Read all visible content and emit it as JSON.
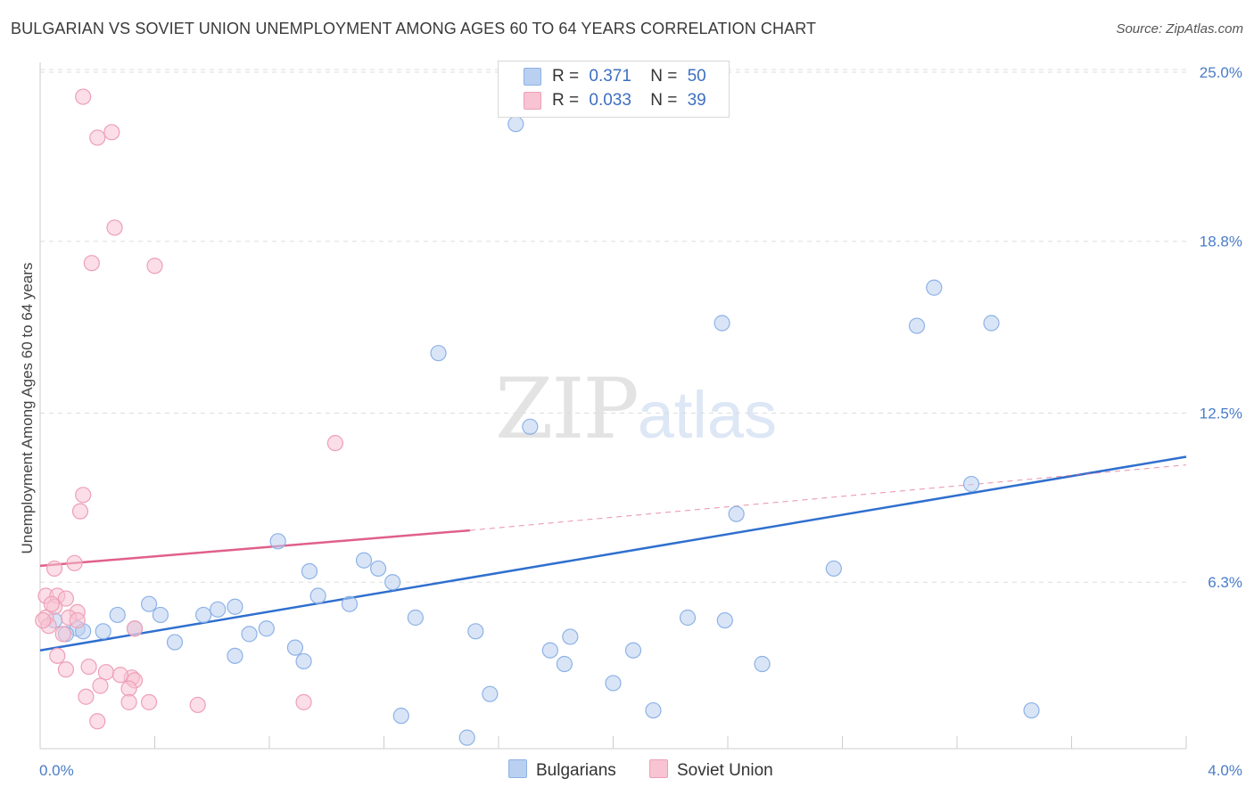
{
  "title": "BULGARIAN VS SOVIET UNION UNEMPLOYMENT AMONG AGES 60 TO 64 YEARS CORRELATION CHART",
  "source": "Source: ZipAtlas.com",
  "watermark": {
    "zip": "ZIP",
    "atlas": "atlas"
  },
  "legend": {
    "rows": [
      {
        "r_label": "R =",
        "r_value": "0.371",
        "n_label": "N =",
        "n_value": "50"
      },
      {
        "r_label": "R =",
        "r_value": "0.033",
        "n_label": "N =",
        "n_value": "39"
      }
    ]
  },
  "bottom_legend": [
    "Bulgarians",
    "Soviet Union"
  ],
  "colors": {
    "blue_fill": "#b9d0f0",
    "blue_stroke": "#8db2e6",
    "blue_line": "#2f6fce",
    "pink_fill": "#f8c3d3",
    "pink_stroke": "#ee9fb7",
    "pink_line": "#e0608a",
    "tick_label": "#4a7cc7"
  },
  "chart_data": {
    "type": "scatter",
    "title": "BULGARIAN VS SOVIET UNION UNEMPLOYMENT AMONG AGES 60 TO 64 YEARS CORRELATION CHART",
    "xlabel": "",
    "ylabel": "Unemployment Among Ages 60 to 64 years",
    "xlim": [
      0,
      4.0
    ],
    "ylim": [
      0,
      26
    ],
    "x_ticks": [
      {
        "value": 0,
        "label": "0.0%"
      },
      {
        "value": 4.0,
        "label": "4.0%"
      }
    ],
    "y_ticks": [
      {
        "value": 6.3,
        "label": "6.3%"
      },
      {
        "value": 12.5,
        "label": "12.5%"
      },
      {
        "value": 18.8,
        "label": "18.8%"
      },
      {
        "value": 25.0,
        "label": "25.0%"
      }
    ],
    "series": [
      {
        "name": "Bulgarians",
        "points": [
          [
            1.66,
            23.1
          ],
          [
            3.12,
            17.1
          ],
          [
            2.38,
            15.8
          ],
          [
            3.06,
            15.7
          ],
          [
            3.32,
            15.8
          ],
          [
            1.39,
            14.7
          ],
          [
            1.71,
            12.0
          ],
          [
            3.25,
            9.9
          ],
          [
            2.43,
            8.8
          ],
          [
            0.83,
            7.8
          ],
          [
            0.94,
            6.7
          ],
          [
            1.13,
            7.1
          ],
          [
            1.18,
            6.8
          ],
          [
            1.23,
            6.3
          ],
          [
            2.77,
            6.8
          ],
          [
            0.97,
            5.8
          ],
          [
            1.08,
            5.5
          ],
          [
            0.38,
            5.5
          ],
          [
            0.62,
            5.3
          ],
          [
            0.68,
            5.4
          ],
          [
            0.27,
            5.1
          ],
          [
            0.42,
            5.1
          ],
          [
            0.57,
            5.1
          ],
          [
            0.13,
            4.6
          ],
          [
            0.15,
            4.5
          ],
          [
            0.22,
            4.5
          ],
          [
            0.33,
            4.6
          ],
          [
            0.47,
            4.1
          ],
          [
            0.73,
            4.4
          ],
          [
            0.79,
            4.6
          ],
          [
            1.31,
            5.0
          ],
          [
            1.52,
            4.5
          ],
          [
            1.85,
            4.3
          ],
          [
            2.26,
            5.0
          ],
          [
            2.39,
            4.9
          ],
          [
            0.68,
            3.6
          ],
          [
            0.89,
            3.9
          ],
          [
            0.92,
            3.4
          ],
          [
            1.78,
            3.8
          ],
          [
            1.83,
            3.3
          ],
          [
            2.07,
            3.8
          ],
          [
            2.52,
            3.3
          ],
          [
            2.0,
            2.6
          ],
          [
            1.57,
            2.2
          ],
          [
            1.26,
            1.4
          ],
          [
            2.14,
            1.6
          ],
          [
            3.46,
            1.6
          ],
          [
            1.49,
            0.6
          ],
          [
            0.05,
            4.9
          ],
          [
            0.09,
            4.4
          ]
        ]
      },
      {
        "name": "Soviet Union",
        "points": [
          [
            0.15,
            24.1
          ],
          [
            0.2,
            22.6
          ],
          [
            0.25,
            22.8
          ],
          [
            0.26,
            19.3
          ],
          [
            0.18,
            18.0
          ],
          [
            0.4,
            17.9
          ],
          [
            1.03,
            11.4
          ],
          [
            0.15,
            9.5
          ],
          [
            0.14,
            8.9
          ],
          [
            0.12,
            7.0
          ],
          [
            0.05,
            6.8
          ],
          [
            0.02,
            5.8
          ],
          [
            0.06,
            5.8
          ],
          [
            0.09,
            5.7
          ],
          [
            0.05,
            5.4
          ],
          [
            0.13,
            5.2
          ],
          [
            0.1,
            5.0
          ],
          [
            0.13,
            4.9
          ],
          [
            0.02,
            5.0
          ],
          [
            0.03,
            4.7
          ],
          [
            0.08,
            4.4
          ],
          [
            0.33,
            4.6
          ],
          [
            0.06,
            3.6
          ],
          [
            0.09,
            3.1
          ],
          [
            0.17,
            3.2
          ],
          [
            0.23,
            3.0
          ],
          [
            0.32,
            2.8
          ],
          [
            0.28,
            2.9
          ],
          [
            0.33,
            2.7
          ],
          [
            0.21,
            2.5
          ],
          [
            0.31,
            2.4
          ],
          [
            0.16,
            2.1
          ],
          [
            0.31,
            1.9
          ],
          [
            0.38,
            1.9
          ],
          [
            0.55,
            1.8
          ],
          [
            0.92,
            1.9
          ],
          [
            0.2,
            1.2
          ],
          [
            0.01,
            4.9
          ],
          [
            0.04,
            5.5
          ]
        ]
      }
    ],
    "trend_lines": [
      {
        "series": "Bulgarians",
        "x": [
          0,
          4.0
        ],
        "y": [
          3.8,
          10.9
        ],
        "style": "solid"
      },
      {
        "series": "Soviet Union",
        "x": [
          0,
          1.5
        ],
        "y": [
          6.9,
          8.2
        ],
        "style": "solid"
      },
      {
        "series": "Soviet Union",
        "x": [
          1.5,
          4.0
        ],
        "y": [
          8.2,
          10.6
        ],
        "style": "dashed"
      }
    ]
  }
}
